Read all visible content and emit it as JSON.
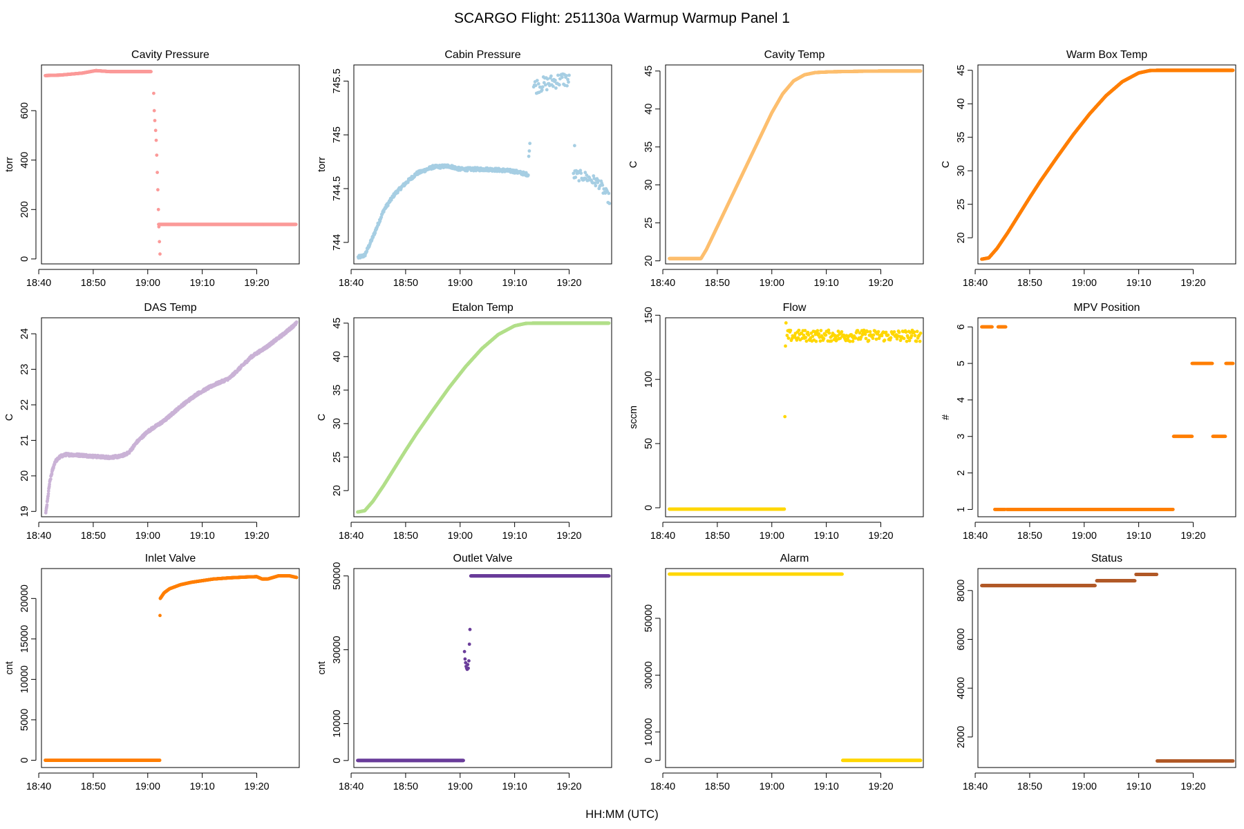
{
  "figure": {
    "title": "SCARGO Flight: 251130a  Warmup Warmup  Panel 1",
    "xlabel": "HH:MM (UTC)"
  },
  "chart_data": [
    {
      "type": "scatter",
      "id": "cavity-pressure",
      "title": "Cavity Pressure",
      "ylabel": "torr",
      "color": "#fb9a99",
      "xlim": [
        40.5,
        87.8
      ],
      "xticks": [
        40,
        50,
        60,
        70,
        80
      ],
      "ylim": [
        -20,
        785
      ],
      "yticks": [
        0,
        200,
        400,
        600
      ],
      "segments": [
        {
          "mode": "line",
          "x": [
            41.2,
            44,
            48,
            50.5,
            53,
            57,
            60.6
          ],
          "y": [
            742,
            744,
            752,
            762,
            758,
            758,
            758
          ],
          "n": 4
        },
        {
          "mode": "points",
          "x": [
            61.1,
            61.2,
            61.3,
            61.45,
            61.55,
            61.65,
            61.75,
            61.85,
            61.95,
            62.05,
            62.15,
            62.25
          ],
          "y": [
            670,
            600,
            560,
            520,
            480,
            420,
            350,
            280,
            200,
            130,
            70,
            20
          ]
        },
        {
          "mode": "line",
          "x": [
            62.0,
            87.2
          ],
          "y": [
            140,
            140
          ],
          "n": 3
        }
      ]
    },
    {
      "type": "scatter",
      "id": "cabin-pressure",
      "title": "Cabin Pressure",
      "ylabel": "torr",
      "color": "#a6cee3",
      "xlim": [
        40.5,
        87.8
      ],
      "xticks": [
        40,
        50,
        60,
        70,
        80
      ],
      "ylim": [
        743.8,
        745.65
      ],
      "yticks": [
        744.0,
        744.5,
        745.0,
        745.5
      ],
      "segments": [
        {
          "mode": "line",
          "x": [
            41.3,
            42.5,
            44,
            46,
            48,
            50,
            52,
            55,
            58,
            60,
            62,
            65,
            68,
            70,
            72.5
          ],
          "y": [
            743.86,
            743.88,
            744.05,
            744.3,
            744.45,
            744.55,
            744.64,
            744.7,
            744.71,
            744.68,
            744.68,
            744.68,
            744.67,
            744.66,
            744.63
          ],
          "n": 2,
          "jitter": 0.015
        },
        {
          "mode": "line",
          "x": [
            73.5,
            76,
            79,
            80
          ],
          "y": [
            745.45,
            745.48,
            745.52,
            745.5
          ],
          "n": 1,
          "jitter": 0.07
        },
        {
          "mode": "line",
          "x": [
            80.8,
            83,
            85.5,
            87.4
          ],
          "y": [
            744.63,
            744.61,
            744.55,
            744.4
          ],
          "n": 1,
          "jitter": 0.05
        },
        {
          "mode": "points",
          "x": [
            72.6,
            72.7,
            72.8,
            81.0
          ],
          "y": [
            744.8,
            744.85,
            744.92,
            744.9
          ]
        }
      ]
    },
    {
      "type": "scatter",
      "id": "cavity-temp",
      "title": "Cavity Temp",
      "ylabel": "C",
      "color": "#fdbf6f",
      "xlim": [
        40.5,
        87.8
      ],
      "xticks": [
        40,
        50,
        60,
        70,
        80
      ],
      "ylim": [
        19.6,
        45.8
      ],
      "yticks": [
        20,
        25,
        30,
        35,
        40,
        45
      ],
      "segments": [
        {
          "mode": "line",
          "x": [
            41.2,
            47,
            48,
            50,
            52,
            54,
            56,
            58,
            60,
            62,
            64,
            66,
            68,
            71,
            75,
            80,
            87.3
          ],
          "y": [
            20.3,
            20.3,
            21.5,
            24.5,
            27.5,
            30.5,
            33.5,
            36.5,
            39.5,
            42.0,
            43.7,
            44.5,
            44.8,
            44.9,
            44.95,
            45.0,
            45.0
          ],
          "n": 6
        }
      ]
    },
    {
      "type": "scatter",
      "id": "warm-box-temp",
      "title": "Warm Box Temp",
      "ylabel": "C",
      "color": "#ff7f00",
      "xlim": [
        40.5,
        87.8
      ],
      "xticks": [
        40,
        50,
        60,
        70,
        80
      ],
      "ylim": [
        16.1,
        45.8
      ],
      "yticks": [
        20,
        25,
        30,
        35,
        40,
        45
      ],
      "segments": [
        {
          "mode": "line",
          "x": [
            41.2,
            42.5,
            44,
            46,
            48,
            50,
            52,
            55,
            58,
            61,
            64,
            67,
            70,
            72,
            73.5,
            75,
            80,
            87.3
          ],
          "y": [
            16.8,
            17.0,
            18.4,
            20.8,
            23.4,
            26.0,
            28.5,
            32.0,
            35.4,
            38.5,
            41.2,
            43.3,
            44.6,
            44.95,
            45.0,
            45.0,
            45.0,
            45.0
          ],
          "n": 6
        }
      ]
    },
    {
      "type": "scatter",
      "id": "das-temp",
      "title": "DAS Temp",
      "ylabel": "C",
      "color": "#cab2d6",
      "xlim": [
        40.5,
        87.8
      ],
      "xticks": [
        40,
        50,
        60,
        70,
        80
      ],
      "ylim": [
        18.85,
        24.45
      ],
      "yticks": [
        19,
        20,
        21,
        22,
        23,
        24
      ],
      "segments": [
        {
          "mode": "line",
          "x": [
            41.3,
            41.6,
            42,
            42.5,
            43,
            44,
            45,
            48,
            50,
            53,
            55,
            56.5,
            58,
            60,
            63,
            66,
            69,
            72,
            75,
            77,
            79,
            82,
            85,
            87.3
          ],
          "y": [
            18.95,
            19.3,
            19.8,
            20.15,
            20.4,
            20.55,
            20.6,
            20.58,
            20.55,
            20.52,
            20.55,
            20.65,
            20.95,
            21.25,
            21.55,
            21.95,
            22.3,
            22.55,
            22.75,
            23.05,
            23.35,
            23.65,
            24.0,
            24.3
          ],
          "n": 3,
          "jitter": 0.035
        }
      ]
    },
    {
      "type": "scatter",
      "id": "etalon-temp",
      "title": "Etalon Temp",
      "ylabel": "C",
      "color": "#b2df8a",
      "xlim": [
        40.5,
        87.8
      ],
      "xticks": [
        40,
        50,
        60,
        70,
        80
      ],
      "ylim": [
        16.1,
        45.8
      ],
      "yticks": [
        20,
        25,
        30,
        35,
        40,
        45
      ],
      "segments": [
        {
          "mode": "line",
          "x": [
            41.2,
            42.5,
            44,
            46,
            48,
            50,
            52,
            55,
            58,
            61,
            64,
            67,
            70,
            72,
            73.5,
            75,
            80,
            87.3
          ],
          "y": [
            16.8,
            17.0,
            18.4,
            20.8,
            23.4,
            26.0,
            28.5,
            32.0,
            35.4,
            38.5,
            41.2,
            43.3,
            44.6,
            44.95,
            45.0,
            45.0,
            45.0,
            45.0
          ],
          "n": 6
        }
      ]
    },
    {
      "type": "scatter",
      "id": "flow",
      "title": "Flow",
      "ylabel": "sccm",
      "color": "#ffd700",
      "xlim": [
        40.5,
        87.8
      ],
      "xticks": [
        40,
        50,
        60,
        70,
        80
      ],
      "ylim": [
        -7,
        148
      ],
      "yticks": [
        0,
        50,
        100,
        150
      ],
      "segments": [
        {
          "mode": "line",
          "x": [
            41.2,
            62.3
          ],
          "y": [
            -1,
            -1
          ],
          "n": 4
        },
        {
          "mode": "points",
          "x": [
            62.4,
            62.5,
            62.6
          ],
          "y": [
            71,
            126,
            144
          ]
        },
        {
          "mode": "line",
          "x": [
            62.8,
            87.3
          ],
          "y": [
            134,
            134
          ],
          "n": 1,
          "jitter": 4.5
        }
      ]
    },
    {
      "type": "scatter",
      "id": "mpv-position",
      "title": "MPV Position",
      "ylabel": "#",
      "color": "#ff7f00",
      "xlim": [
        40.5,
        87.8
      ],
      "xticks": [
        40,
        50,
        60,
        70,
        80
      ],
      "ylim": [
        0.8,
        6.25
      ],
      "yticks": [
        1,
        2,
        3,
        4,
        5,
        6
      ],
      "segments": [
        {
          "mode": "line",
          "x": [
            41.2,
            43.1
          ],
          "y": [
            6,
            6
          ],
          "n": 2
        },
        {
          "mode": "line",
          "x": [
            43.6,
            45.5
          ],
          "y": [
            1,
            1
          ],
          "n": 2
        },
        {
          "mode": "line",
          "x": [
            44.2,
            45.6
          ],
          "y": [
            6,
            6
          ],
          "n": 2
        },
        {
          "mode": "line",
          "x": [
            45.8,
            76.3
          ],
          "y": [
            1,
            1
          ],
          "n": 2
        },
        {
          "mode": "line",
          "x": [
            76.4,
            79.8
          ],
          "y": [
            3,
            3
          ],
          "n": 2
        },
        {
          "mode": "line",
          "x": [
            79.8,
            83.5
          ],
          "y": [
            5,
            5
          ],
          "n": 2
        },
        {
          "mode": "line",
          "x": [
            83.6,
            85.9
          ],
          "y": [
            3,
            3
          ],
          "n": 2
        },
        {
          "mode": "line",
          "x": [
            86.0,
            87.3
          ],
          "y": [
            5,
            5
          ],
          "n": 2
        }
      ]
    },
    {
      "type": "scatter",
      "id": "inlet-valve",
      "title": "Inlet Valve",
      "ylabel": "cnt",
      "color": "#ff7f00",
      "xlim": [
        40.5,
        87.8
      ],
      "xticks": [
        40,
        50,
        60,
        70,
        80
      ],
      "ylim": [
        -900,
        23700
      ],
      "yticks": [
        0,
        5000,
        10000,
        15000,
        20000
      ],
      "segments": [
        {
          "mode": "line",
          "x": [
            41.2,
            62.2
          ],
          "y": [
            0,
            0
          ],
          "n": 4
        },
        {
          "mode": "points",
          "x": [
            62.25
          ],
          "y": [
            17900
          ]
        },
        {
          "mode": "line",
          "x": [
            62.3,
            63,
            64,
            66,
            68,
            70,
            72,
            75,
            78,
            80,
            81,
            82,
            84,
            86,
            87.3
          ],
          "y": [
            20000,
            20700,
            21200,
            21700,
            22000,
            22200,
            22400,
            22550,
            22650,
            22700,
            22400,
            22400,
            22800,
            22800,
            22600
          ],
          "n": 4
        }
      ]
    },
    {
      "type": "scatter",
      "id": "outlet-valve",
      "title": "Outlet Valve",
      "ylabel": "cnt",
      "color": "#6a3d9a",
      "xlim": [
        40.5,
        87.8
      ],
      "xticks": [
        40,
        50,
        60,
        70,
        80
      ],
      "ylim": [
        -1900,
        52000
      ],
      "yticks": [
        0,
        10000,
        30000,
        50000
      ],
      "segments": [
        {
          "mode": "line",
          "x": [
            41.2,
            60.6
          ],
          "y": [
            0,
            0
          ],
          "n": 4
        },
        {
          "mode": "points",
          "x": [
            60.8,
            60.9,
            61.0,
            61.1,
            61.2,
            61.3,
            61.4,
            61.5,
            61.6,
            61.7,
            61.8,
            61.95
          ],
          "y": [
            29500,
            27500,
            26500,
            25500,
            25000,
            24700,
            26000,
            25000,
            27000,
            31500,
            35500,
            50000
          ]
        },
        {
          "mode": "line",
          "x": [
            62.0,
            87.3
          ],
          "y": [
            50000,
            50000
          ],
          "n": 4
        }
      ]
    },
    {
      "type": "scatter",
      "id": "alarm",
      "title": "Alarm",
      "ylabel": "",
      "color": "#ffd700",
      "xlim": [
        40.5,
        87.8
      ],
      "xticks": [
        40,
        50,
        60,
        70,
        80
      ],
      "ylim": [
        -2500,
        67500
      ],
      "yticks": [
        0,
        10000,
        30000,
        50000
      ],
      "segments": [
        {
          "mode": "line",
          "x": [
            41.2,
            72.9
          ],
          "y": [
            65535,
            65535
          ],
          "n": 4
        },
        {
          "mode": "line",
          "x": [
            73.0,
            87.3
          ],
          "y": [
            0,
            0
          ],
          "n": 4
        }
      ]
    },
    {
      "type": "scatter",
      "id": "status",
      "title": "Status",
      "ylabel": "",
      "color": "#b15928",
      "xlim": [
        40.5,
        87.8
      ],
      "xticks": [
        40,
        50,
        60,
        70,
        80
      ],
      "ylim": [
        750,
        8900
      ],
      "yticks": [
        2000,
        4000,
        6000,
        8000
      ],
      "segments": [
        {
          "mode": "line",
          "x": [
            41.2,
            62.0
          ],
          "y": [
            8200,
            8200
          ],
          "n": 4
        },
        {
          "mode": "line",
          "x": [
            62.3,
            69.3
          ],
          "y": [
            8400,
            8400
          ],
          "n": 4
        },
        {
          "mode": "line",
          "x": [
            69.5,
            73.3
          ],
          "y": [
            8660,
            8660
          ],
          "n": 4
        },
        {
          "mode": "line",
          "x": [
            73.4,
            87.3
          ],
          "y": [
            1020,
            1020
          ],
          "n": 4
        }
      ]
    }
  ]
}
